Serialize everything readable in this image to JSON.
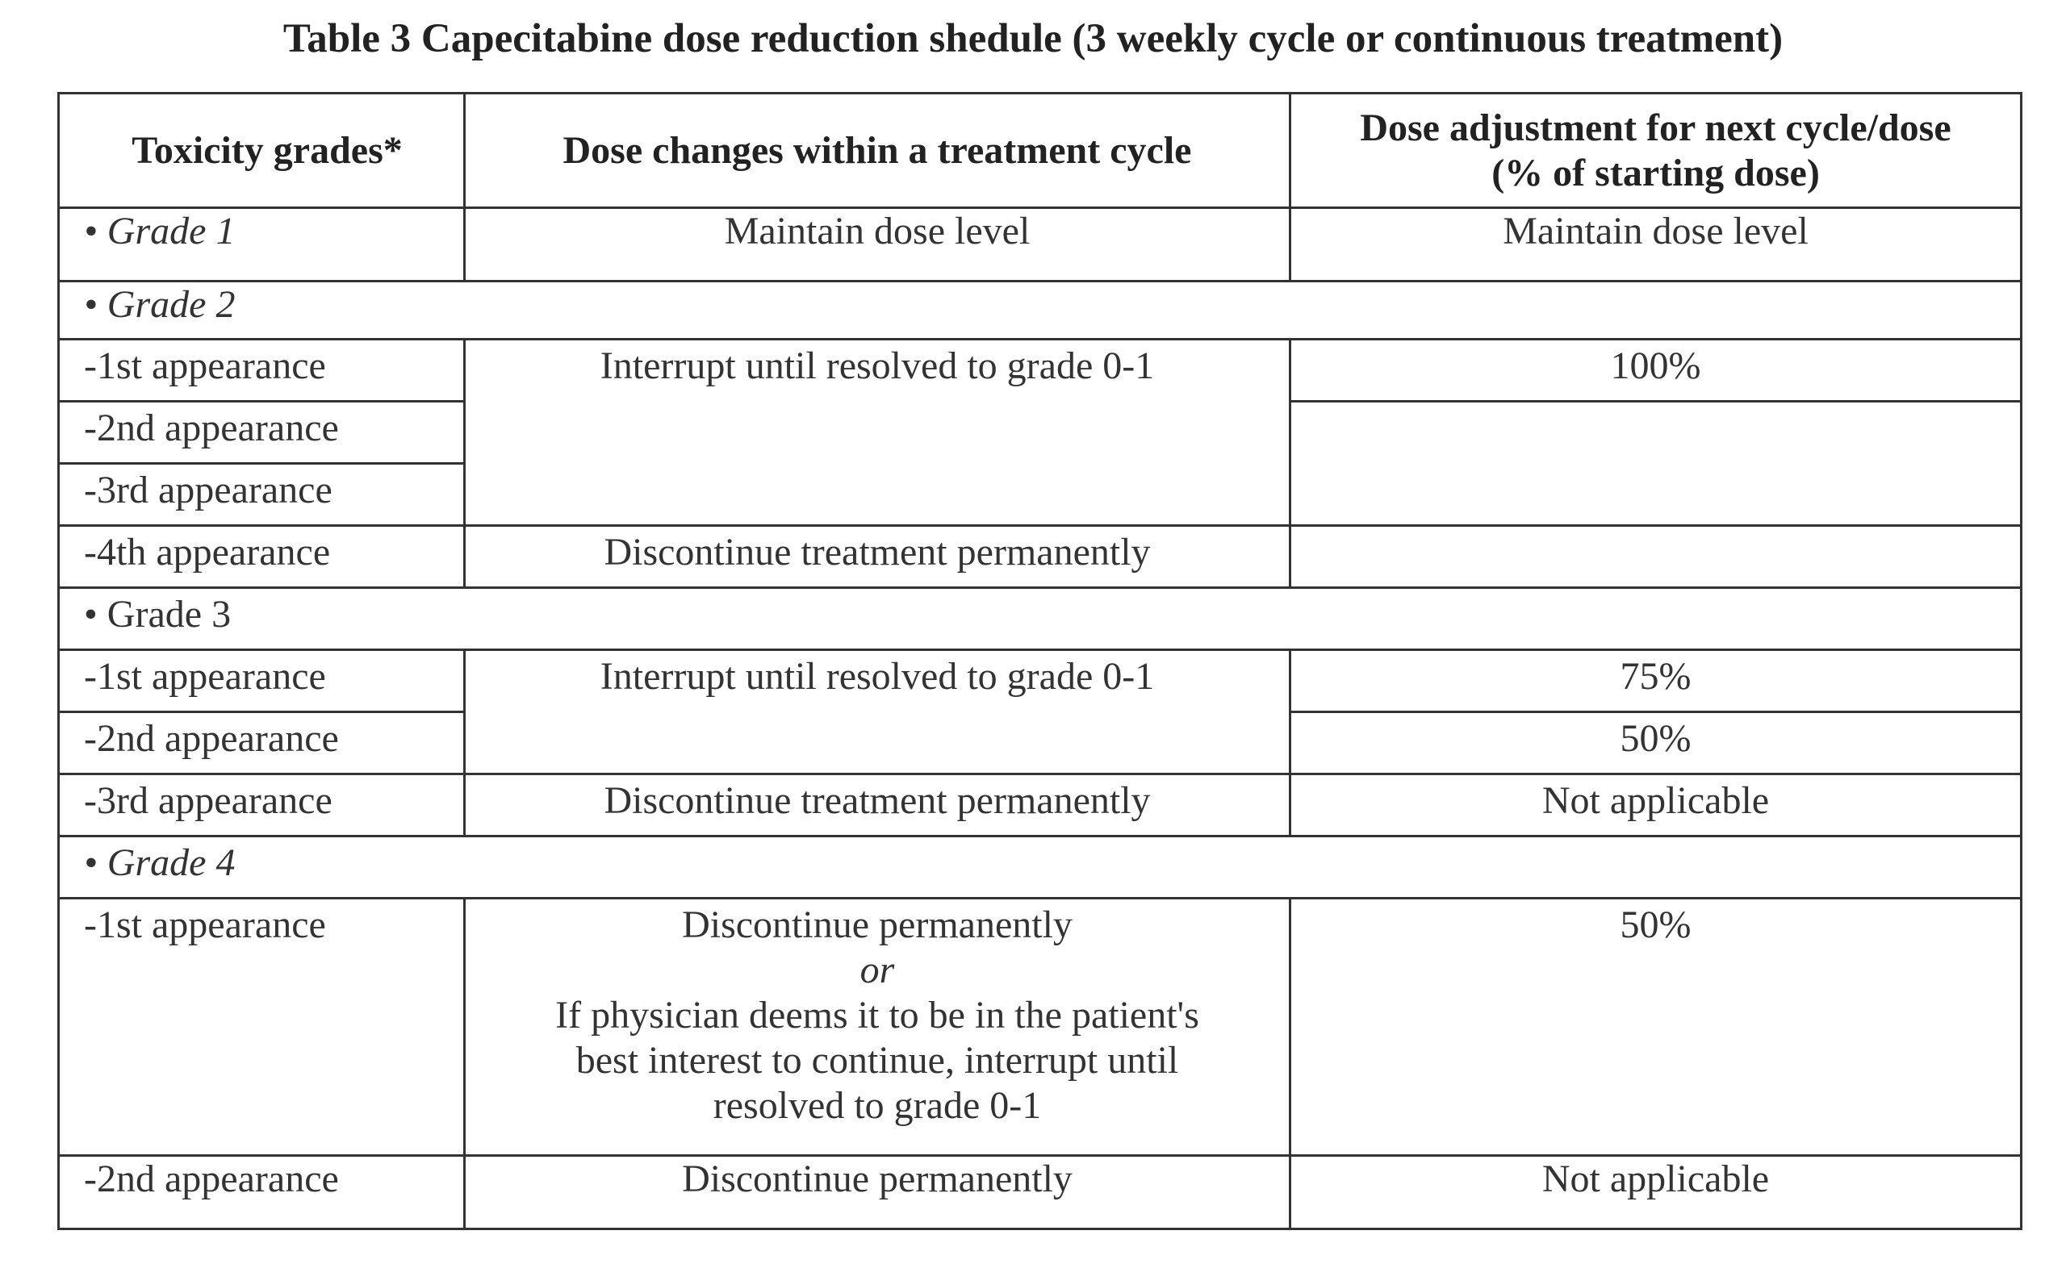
{
  "caption": "Table 3 Capecitabine dose reduction shedule (3 weekly cycle or continuous treatment)",
  "headers": {
    "col1": "Toxicity grades*",
    "col2": "Dose changes within a treatment cycle",
    "col3_line1": "Dose adjustment for next cycle/dose",
    "col3_line2": "(% of starting dose)"
  },
  "grade1": {
    "label": "• Grade 1",
    "within_cycle": "Maintain dose level",
    "next_cycle": "Maintain dose level"
  },
  "grade2": {
    "label": "• Grade 2",
    "rows": [
      {
        "appearance": "-1st appearance",
        "next_cycle": "100%"
      },
      {
        "appearance": "-2nd appearance",
        "next_cycle": ""
      },
      {
        "appearance": "-3rd appearance"
      },
      {
        "appearance": "-4th appearance",
        "within_cycle": "Discontinue treatment permanently",
        "next_cycle": ""
      }
    ],
    "within_cycle_interrupt": "Interrupt until resolved to grade 0-1"
  },
  "grade3": {
    "label": "• Grade 3",
    "rows": [
      {
        "appearance": "-1st appearance",
        "next_cycle": "75%"
      },
      {
        "appearance": "-2nd appearance",
        "next_cycle": "50%"
      },
      {
        "appearance": "-3rd appearance",
        "within_cycle": "Discontinue treatment permanently",
        "next_cycle": "Not applicable"
      }
    ],
    "within_cycle_interrupt": "Interrupt until resolved to grade 0-1"
  },
  "grade4": {
    "label": "• Grade 4",
    "rows": [
      {
        "appearance": "-1st appearance",
        "within_cycle_line1": "Discontinue permanently",
        "within_cycle_or": "or",
        "within_cycle_line2": "If physician deems it to be in the patient's",
        "within_cycle_line3": "best interest to continue, interrupt until",
        "within_cycle_line4": "resolved to grade 0-1",
        "next_cycle": "50%"
      },
      {
        "appearance": "-2nd appearance",
        "within_cycle": "Discontinue permanently",
        "next_cycle": "Not applicable"
      }
    ]
  }
}
